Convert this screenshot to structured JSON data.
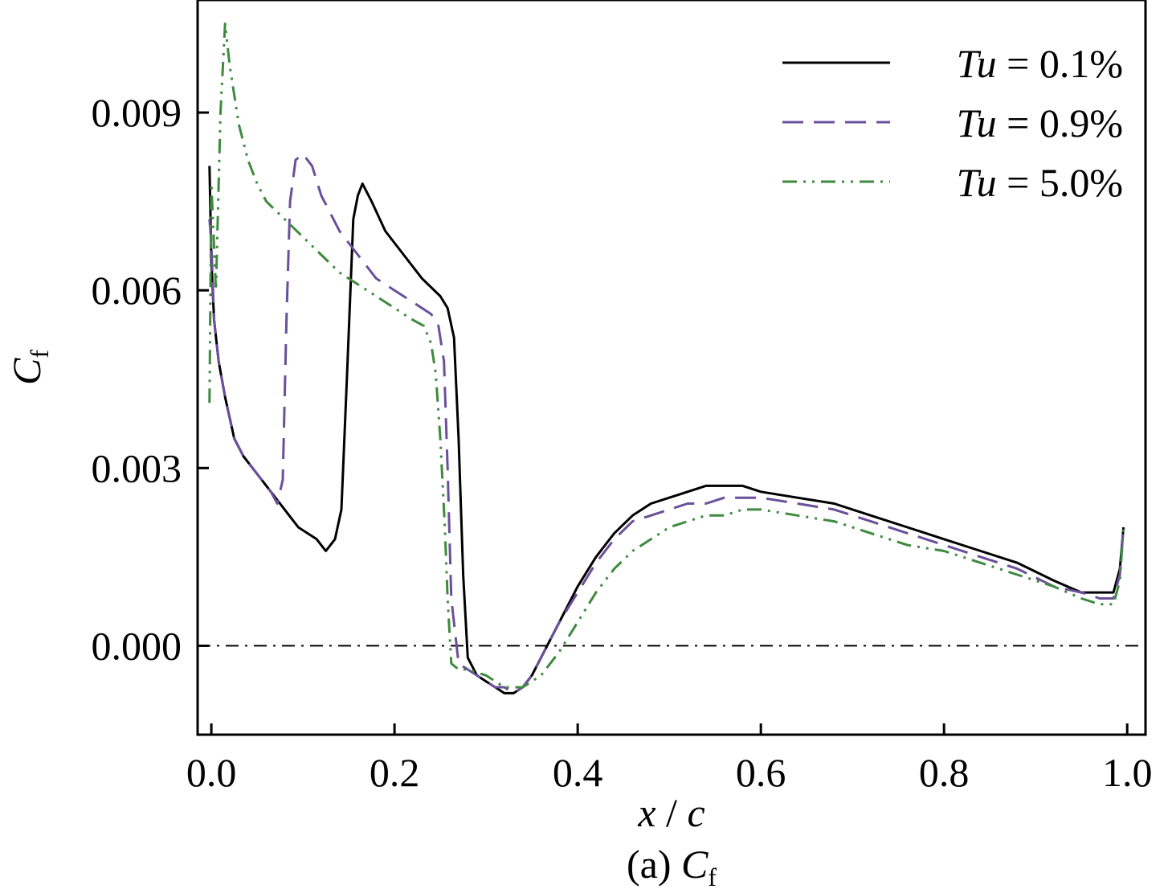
{
  "chart_data": {
    "type": "line",
    "caption": "(a) C_f",
    "caption_parts": {
      "prefix": "(a) ",
      "main": "C",
      "sub": "f"
    },
    "xlabel": "x / c",
    "xlabel_parts": {
      "x": "x",
      "sep": " / ",
      "c": "c"
    },
    "ylabel": "C_f",
    "ylabel_parts": {
      "main": "C",
      "sub": "f"
    },
    "xlim": [
      -0.015,
      1.02
    ],
    "ylim": [
      -0.0015,
      0.0109
    ],
    "x_ticks": [
      0.0,
      0.2,
      0.4,
      0.6,
      0.8,
      1.0
    ],
    "x_tick_labels": [
      "0.0",
      "0.2",
      "0.4",
      "0.6",
      "0.8",
      "1.0"
    ],
    "y_ticks": [
      0.0,
      0.003,
      0.006,
      0.009
    ],
    "y_tick_labels": [
      "0.000",
      "0.003",
      "0.006",
      "0.009"
    ],
    "grid": false,
    "legend_position": "top-right",
    "reference_line": {
      "y": 0.0,
      "style": "dash-dot",
      "color": "#000000"
    },
    "series": [
      {
        "name": "Tu = 0.1%",
        "legend_parts": {
          "var": "Tu",
          "rest": " = 0.1%"
        },
        "color": "#000000",
        "style": "solid",
        "x": [
          -0.002,
          0.0,
          0.003,
          0.008,
          0.015,
          0.025,
          0.035,
          0.045,
          0.055,
          0.065,
          0.075,
          0.085,
          0.095,
          0.105,
          0.115,
          0.125,
          0.135,
          0.142,
          0.148,
          0.155,
          0.16,
          0.165,
          0.175,
          0.19,
          0.21,
          0.23,
          0.25,
          0.258,
          0.265,
          0.27,
          0.275,
          0.28,
          0.29,
          0.3,
          0.31,
          0.32,
          0.33,
          0.34,
          0.35,
          0.36,
          0.37,
          0.38,
          0.4,
          0.42,
          0.44,
          0.46,
          0.48,
          0.5,
          0.52,
          0.54,
          0.56,
          0.58,
          0.6,
          0.64,
          0.68,
          0.72,
          0.76,
          0.8,
          0.84,
          0.88,
          0.92,
          0.95,
          0.97,
          0.985,
          0.992,
          0.996
        ],
        "y": [
          0.0081,
          0.0065,
          0.0055,
          0.0048,
          0.0042,
          0.0035,
          0.0032,
          0.003,
          0.0028,
          0.0026,
          0.0024,
          0.0022,
          0.002,
          0.0019,
          0.0018,
          0.0016,
          0.0018,
          0.0023,
          0.0045,
          0.0072,
          0.0076,
          0.0078,
          0.0075,
          0.007,
          0.0066,
          0.0062,
          0.0059,
          0.0057,
          0.0052,
          0.0035,
          0.0012,
          -0.0002,
          -0.0005,
          -0.0006,
          -0.0007,
          -0.0008,
          -0.0008,
          -0.0007,
          -0.0005,
          -0.0002,
          0.0001,
          0.0004,
          0.001,
          0.0015,
          0.0019,
          0.0022,
          0.0024,
          0.0025,
          0.0026,
          0.0027,
          0.0027,
          0.0027,
          0.0026,
          0.0025,
          0.0024,
          0.0022,
          0.002,
          0.0018,
          0.0016,
          0.0014,
          0.0011,
          0.0009,
          0.0009,
          0.0009,
          0.0013,
          0.002
        ]
      },
      {
        "name": "Tu = 0.9%",
        "legend_parts": {
          "var": "Tu",
          "rest": " = 0.9%"
        },
        "color": "#6a4f9b",
        "style": "dashed",
        "x": [
          -0.002,
          0.0,
          0.003,
          0.008,
          0.015,
          0.025,
          0.035,
          0.045,
          0.055,
          0.065,
          0.072,
          0.078,
          0.082,
          0.086,
          0.092,
          0.1,
          0.11,
          0.12,
          0.14,
          0.16,
          0.18,
          0.2,
          0.22,
          0.24,
          0.248,
          0.254,
          0.258,
          0.262,
          0.27,
          0.28,
          0.29,
          0.3,
          0.31,
          0.32,
          0.33,
          0.34,
          0.35,
          0.36,
          0.37,
          0.38,
          0.4,
          0.42,
          0.44,
          0.46,
          0.48,
          0.5,
          0.52,
          0.54,
          0.56,
          0.58,
          0.6,
          0.64,
          0.68,
          0.72,
          0.76,
          0.8,
          0.84,
          0.88,
          0.92,
          0.95,
          0.97,
          0.985,
          0.992,
          0.996
        ],
        "y": [
          0.0072,
          0.0068,
          0.0055,
          0.0048,
          0.0042,
          0.0035,
          0.0032,
          0.003,
          0.0028,
          0.0026,
          0.0024,
          0.0028,
          0.0055,
          0.0075,
          0.0082,
          0.0083,
          0.0081,
          0.0076,
          0.007,
          0.0066,
          0.0062,
          0.006,
          0.0058,
          0.0056,
          0.0054,
          0.0048,
          0.003,
          0.0008,
          -0.0003,
          -0.0004,
          -0.0005,
          -0.0006,
          -0.0007,
          -0.0007,
          -0.0008,
          -0.0007,
          -0.0005,
          -0.0002,
          0.0001,
          0.0004,
          0.0009,
          0.0014,
          0.0018,
          0.0021,
          0.0022,
          0.0023,
          0.0024,
          0.0024,
          0.0025,
          0.0025,
          0.0025,
          0.0024,
          0.0023,
          0.0021,
          0.0019,
          0.0017,
          0.0015,
          0.0013,
          0.001,
          0.0009,
          0.0008,
          0.0008,
          0.0012,
          0.002
        ]
      },
      {
        "name": "Tu = 5.0%",
        "legend_parts": {
          "var": "Tu",
          "rest": " = 5.0%"
        },
        "color": "#3e8a3e",
        "style": "dash-dot-dot",
        "x": [
          -0.002,
          0.0,
          0.005,
          0.01,
          0.015,
          0.02,
          0.03,
          0.04,
          0.05,
          0.06,
          0.08,
          0.1,
          0.12,
          0.14,
          0.16,
          0.18,
          0.2,
          0.22,
          0.232,
          0.24,
          0.245,
          0.25,
          0.255,
          0.258,
          0.262,
          0.27,
          0.28,
          0.3,
          0.32,
          0.34,
          0.36,
          0.38,
          0.4,
          0.42,
          0.44,
          0.46,
          0.48,
          0.5,
          0.52,
          0.54,
          0.56,
          0.58,
          0.6,
          0.64,
          0.68,
          0.72,
          0.76,
          0.8,
          0.84,
          0.88,
          0.92,
          0.95,
          0.97,
          0.985,
          0.992,
          0.996
        ],
        "y": [
          0.0041,
          0.0078,
          0.006,
          0.009,
          0.0105,
          0.0098,
          0.0088,
          0.0082,
          0.0078,
          0.0075,
          0.0072,
          0.0069,
          0.0066,
          0.0063,
          0.0061,
          0.0059,
          0.0057,
          0.0055,
          0.0054,
          0.0051,
          0.0046,
          0.0035,
          0.002,
          0.0008,
          -0.0003,
          -0.0004,
          -0.0004,
          -0.0005,
          -0.0007,
          -0.0007,
          -0.0005,
          -0.0001,
          0.0004,
          0.0009,
          0.0013,
          0.0016,
          0.0018,
          0.002,
          0.0021,
          0.0022,
          0.0022,
          0.0023,
          0.0023,
          0.0022,
          0.0021,
          0.0019,
          0.0017,
          0.0016,
          0.0014,
          0.0012,
          0.001,
          0.0008,
          0.0007,
          0.0007,
          0.0011,
          0.002
        ]
      }
    ]
  }
}
